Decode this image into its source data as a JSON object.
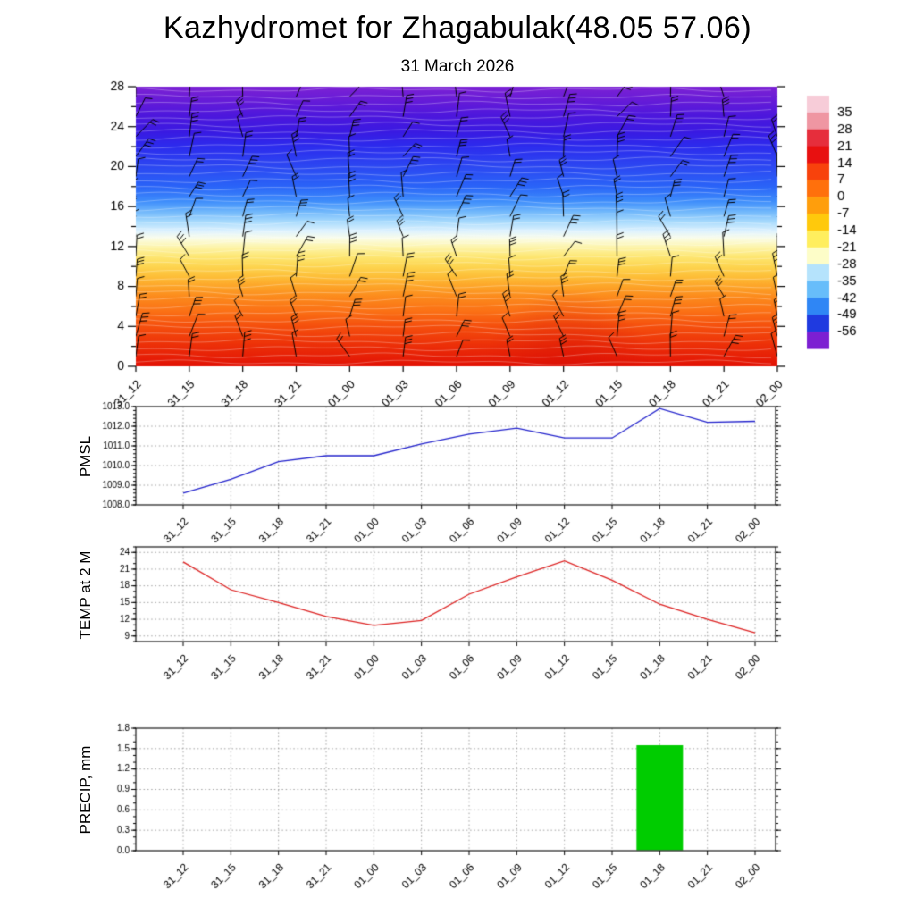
{
  "page": {
    "title": "Kazhydromet for Zhagabulak(48.05 57.06)",
    "subtitle": "31 March 2026"
  },
  "time_labels": [
    "31_12",
    "31_15",
    "31_18",
    "31_21",
    "01_00",
    "01_03",
    "01_06",
    "01_09",
    "01_12",
    "01_15",
    "01_18",
    "01_21",
    "02_00"
  ],
  "chart_data": [
    {
      "type": "heatmap",
      "name": "temperature-height cross section with wind barbs",
      "categories": [
        "31_12",
        "31_15",
        "31_18",
        "31_21",
        "01_00",
        "01_03",
        "01_06",
        "01_09",
        "01_12",
        "01_15",
        "01_18",
        "01_21",
        "02_00"
      ],
      "ylim": [
        0,
        28
      ],
      "yticks": [
        0,
        4,
        8,
        12,
        16,
        20,
        24,
        28
      ],
      "ytick_labels": [
        "0",
        "4",
        "8",
        "12",
        "16",
        "20",
        "24",
        "28"
      ],
      "colorbar": {
        "tick_labels": [
          "35",
          "28",
          "21",
          "14",
          "7",
          "0",
          "-7",
          "-14",
          "-21",
          "-28",
          "-35",
          "-42",
          "-49",
          "-56"
        ],
        "colors": [
          "#f7ccd8",
          "#ef96a2",
          "#e62e3c",
          "#e81010",
          "#f8420c",
          "#ff700c",
          "#ff9e0c",
          "#ffc90c",
          "#ffee5e",
          "#fdfdc8",
          "#b5e3fc",
          "#67bdfa",
          "#2f86f5",
          "#1f3ae0",
          "#7c1fd2"
        ]
      },
      "color_stops_by_height": [
        {
          "h": 28,
          "c": "#7c22d4"
        },
        {
          "h": 26.5,
          "c": "#641bd8"
        },
        {
          "h": 25,
          "c": "#4c17dd"
        },
        {
          "h": 23.5,
          "c": "#3a1ae2"
        },
        {
          "h": 22,
          "c": "#2c2cee"
        },
        {
          "h": 20,
          "c": "#2c48f2"
        },
        {
          "h": 18,
          "c": "#2a64f8"
        },
        {
          "h": 16.5,
          "c": "#3f8efb"
        },
        {
          "h": 15.5,
          "c": "#70b7fb"
        },
        {
          "h": 14.5,
          "c": "#a7dafd"
        },
        {
          "h": 13.5,
          "c": "#e0f3fe"
        },
        {
          "h": 12.8,
          "c": "#fbfde8"
        },
        {
          "h": 12,
          "c": "#fdf5ae"
        },
        {
          "h": 11,
          "c": "#fde773"
        },
        {
          "h": 10,
          "c": "#fdd550"
        },
        {
          "h": 9,
          "c": "#fdbf38"
        },
        {
          "h": 8,
          "c": "#fda428"
        },
        {
          "h": 7,
          "c": "#fc8b1d"
        },
        {
          "h": 5.5,
          "c": "#fb7015"
        },
        {
          "h": 4,
          "c": "#f54f0d"
        },
        {
          "h": 2,
          "c": "#ec2e08"
        },
        {
          "h": 0,
          "c": "#e21205"
        }
      ],
      "approx_temp_c_by_height": [
        [
          0,
          20
        ],
        [
          4,
          13
        ],
        [
          8,
          5
        ],
        [
          12,
          -6
        ],
        [
          14,
          -16
        ],
        [
          16,
          -23
        ],
        [
          20,
          -38
        ],
        [
          24,
          -50
        ],
        [
          28,
          -58
        ]
      ],
      "wind_barbs": "black wind barbs at every time step and level, speed/direction varying with height",
      "contours": "thin white temperature contour lines across the field"
    },
    {
      "type": "line",
      "name": "PMSL",
      "color": "#2222cc",
      "categories": [
        "31_12",
        "31_15",
        "31_18",
        "31_21",
        "01_00",
        "01_03",
        "01_06",
        "01_09",
        "01_12",
        "01_15",
        "01_18",
        "01_21",
        "02_00"
      ],
      "values": [
        1008.6,
        1009.3,
        1010.2,
        1010.5,
        1010.5,
        1011.1,
        1011.6,
        1011.9,
        1011.4,
        1011.4,
        1012.9,
        1012.2,
        1012.25
      ],
      "ylim": [
        1008,
        1013
      ],
      "yticks": [
        1008,
        1009,
        1010,
        1011,
        1012,
        1013
      ],
      "ytick_labels": [
        "1008.0",
        "1009.0",
        "1010.0",
        "1011.0",
        "1012.0",
        "1013.0"
      ]
    },
    {
      "type": "line",
      "name": "TEMP at 2 M",
      "color": "#dd2222",
      "categories": [
        "31_12",
        "31_15",
        "31_18",
        "31_21",
        "01_00",
        "01_03",
        "01_06",
        "01_09",
        "01_12",
        "01_15",
        "01_18",
        "01_21",
        "02_00"
      ],
      "values": [
        22.3,
        17.3,
        15.0,
        12.5,
        10.9,
        11.8,
        16.5,
        19.6,
        22.5,
        19.0,
        14.7,
        12.0,
        9.6
      ],
      "ylim": [
        8,
        25
      ],
      "yticks": [
        9,
        12,
        15,
        18,
        21,
        24
      ],
      "ytick_labels": [
        "9",
        "12",
        "15",
        "18",
        "21",
        "24"
      ]
    },
    {
      "type": "bar",
      "name": "PRECIP, mm",
      "color": "#00cc00",
      "categories": [
        "31_12",
        "31_15",
        "31_18",
        "31_21",
        "01_00",
        "01_03",
        "01_06",
        "01_09",
        "01_12",
        "01_15",
        "01_18",
        "01_21",
        "02_00"
      ],
      "values": [
        0,
        0,
        0,
        0,
        0,
        0,
        0,
        0,
        0,
        0,
        1.55,
        0,
        0
      ],
      "ylim": [
        0,
        1.8
      ],
      "yticks": [
        0,
        0.3,
        0.6,
        0.9,
        1.2,
        1.5,
        1.8
      ],
      "ytick_labels": [
        "0.0",
        "0.3",
        "0.6",
        "0.9",
        "1.2",
        "1.5",
        "1.8"
      ]
    }
  ]
}
